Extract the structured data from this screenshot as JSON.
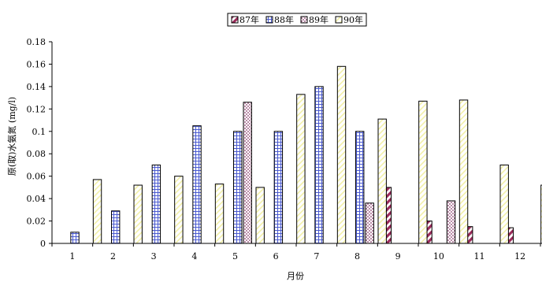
{
  "chart_data": {
    "type": "bar",
    "title": "",
    "xlabel": "月份",
    "ylabel": "原(取)水氨氮 (mg/l)",
    "categories": [
      "1",
      "2",
      "3",
      "4",
      "5",
      "6",
      "7",
      "8",
      "9",
      "10",
      "11",
      "12"
    ],
    "ylim": [
      0,
      0.18
    ],
    "yticks": [
      "0",
      "0.02",
      "0.04",
      "0.06",
      "0.08",
      "0.1",
      "0.12",
      "0.14",
      "0.16",
      "0.18"
    ],
    "legend_position": "top-center",
    "grid": false,
    "series": [
      {
        "name": "87年",
        "pattern": "diagonal-stripes",
        "color": "#9a2a5a",
        "values": [
          null,
          null,
          null,
          null,
          null,
          null,
          null,
          null,
          0.05,
          0.02,
          0.015,
          0.014
        ]
      },
      {
        "name": "88年",
        "pattern": "grid",
        "color": "#4a5ad0",
        "values": [
          0.01,
          0.029,
          0.07,
          0.105,
          0.1,
          0.1,
          0.14,
          0.1,
          null,
          null,
          null,
          null
        ]
      },
      {
        "name": "89年",
        "pattern": "dots",
        "color": "#8a3a6a",
        "values": [
          null,
          null,
          null,
          null,
          0.126,
          null,
          null,
          0.036,
          null,
          0.038,
          null,
          null
        ]
      },
      {
        "name": "90年",
        "pattern": "light-diagonal",
        "color": "#f0f0a0",
        "values": [
          0.057,
          0.052,
          0.06,
          0.053,
          0.05,
          0.133,
          0.158,
          0.111,
          0.127,
          0.128,
          0.07,
          0.052
        ]
      }
    ]
  }
}
